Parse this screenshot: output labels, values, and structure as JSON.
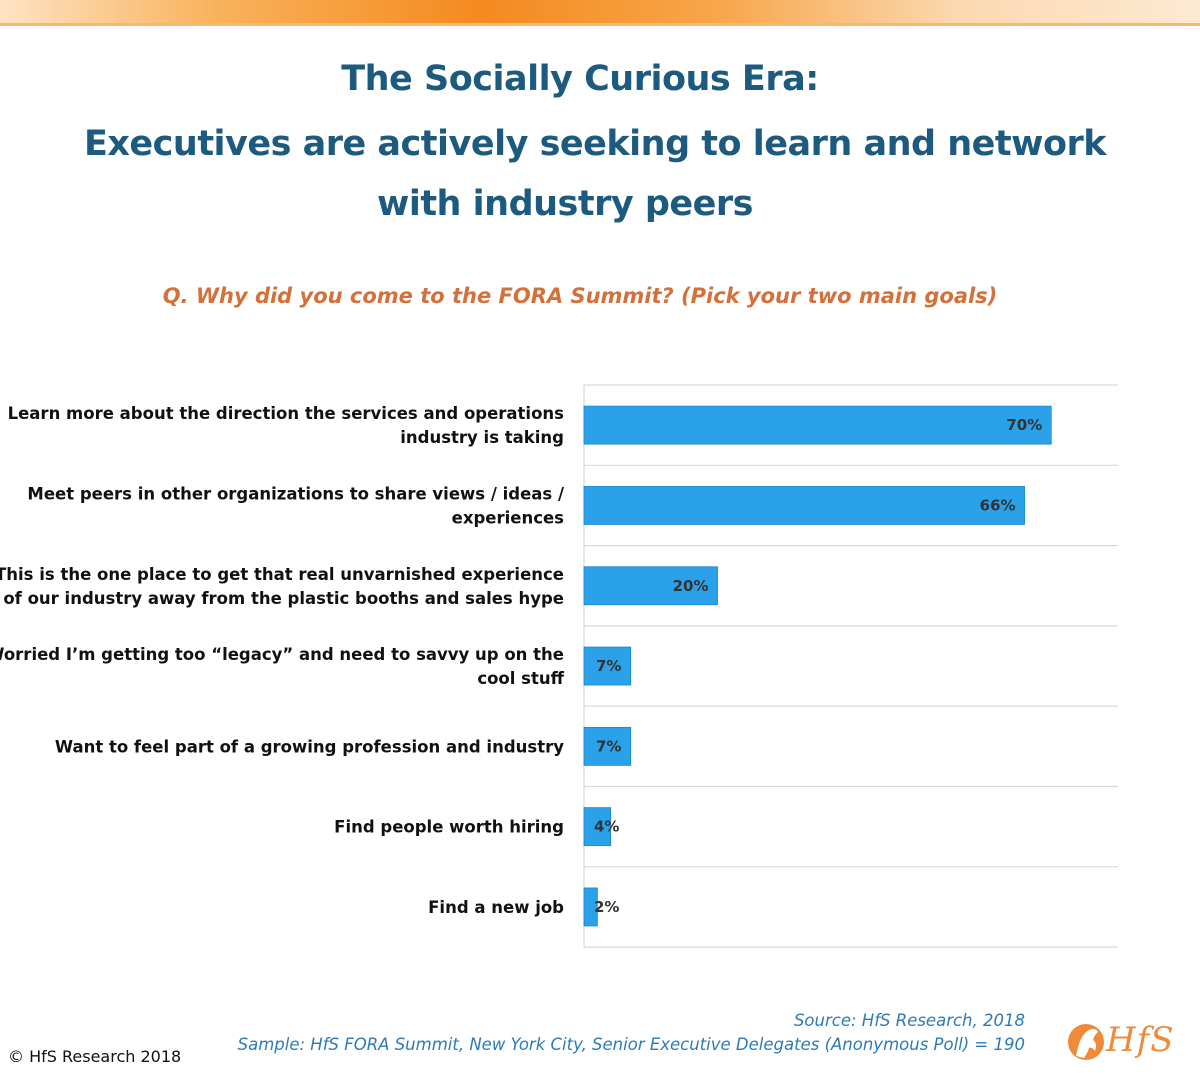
{
  "header": {
    "title_line1": "The Socially Curious Era:",
    "title_line2": "Executives are actively seeking to learn and network",
    "title_line3": "with industry peers",
    "question": "Q. Why did you come to the FORA Summit? (Pick your two main goals)"
  },
  "chart_data": {
    "type": "bar",
    "orientation": "horizontal",
    "categories": [
      [
        "Learn more about the direction the services and operations",
        "industry is taking"
      ],
      [
        "Meet peers in other organizations to share views / ideas /",
        "experiences"
      ],
      [
        "This is the one place to get that real unvarnished experience",
        "of our industry away from the plastic booths and sales hype"
      ],
      [
        "Worried I’m getting too “legacy” and need to savvy up on the",
        "cool stuff"
      ],
      [
        "Want to feel part of a growing profession and industry"
      ],
      [
        "Find people worth hiring"
      ],
      [
        "Find a new job"
      ]
    ],
    "values": [
      70,
      66,
      20,
      7,
      7,
      4,
      2
    ],
    "value_labels": [
      "70%",
      "66%",
      "20%",
      "7%",
      "7%",
      "4%",
      "2%"
    ],
    "xlim": [
      0,
      80
    ],
    "gridlines": "horizontal separators",
    "bar_color": "#2aa1e8"
  },
  "footer": {
    "source": "Source: HfS Research, 2018",
    "sample": "Sample: HfS FORA Summit, New York City, Senior Executive Delegates (Anonymous Poll) = 190",
    "copyright": "© HfS Research 2018",
    "logo_text": "HfS"
  },
  "colors": {
    "title": "#1c5a7f",
    "question": "#d4713a",
    "source": "#2d7bb6",
    "bar": "#2aa1e8",
    "logo": "#ee8a3a"
  }
}
